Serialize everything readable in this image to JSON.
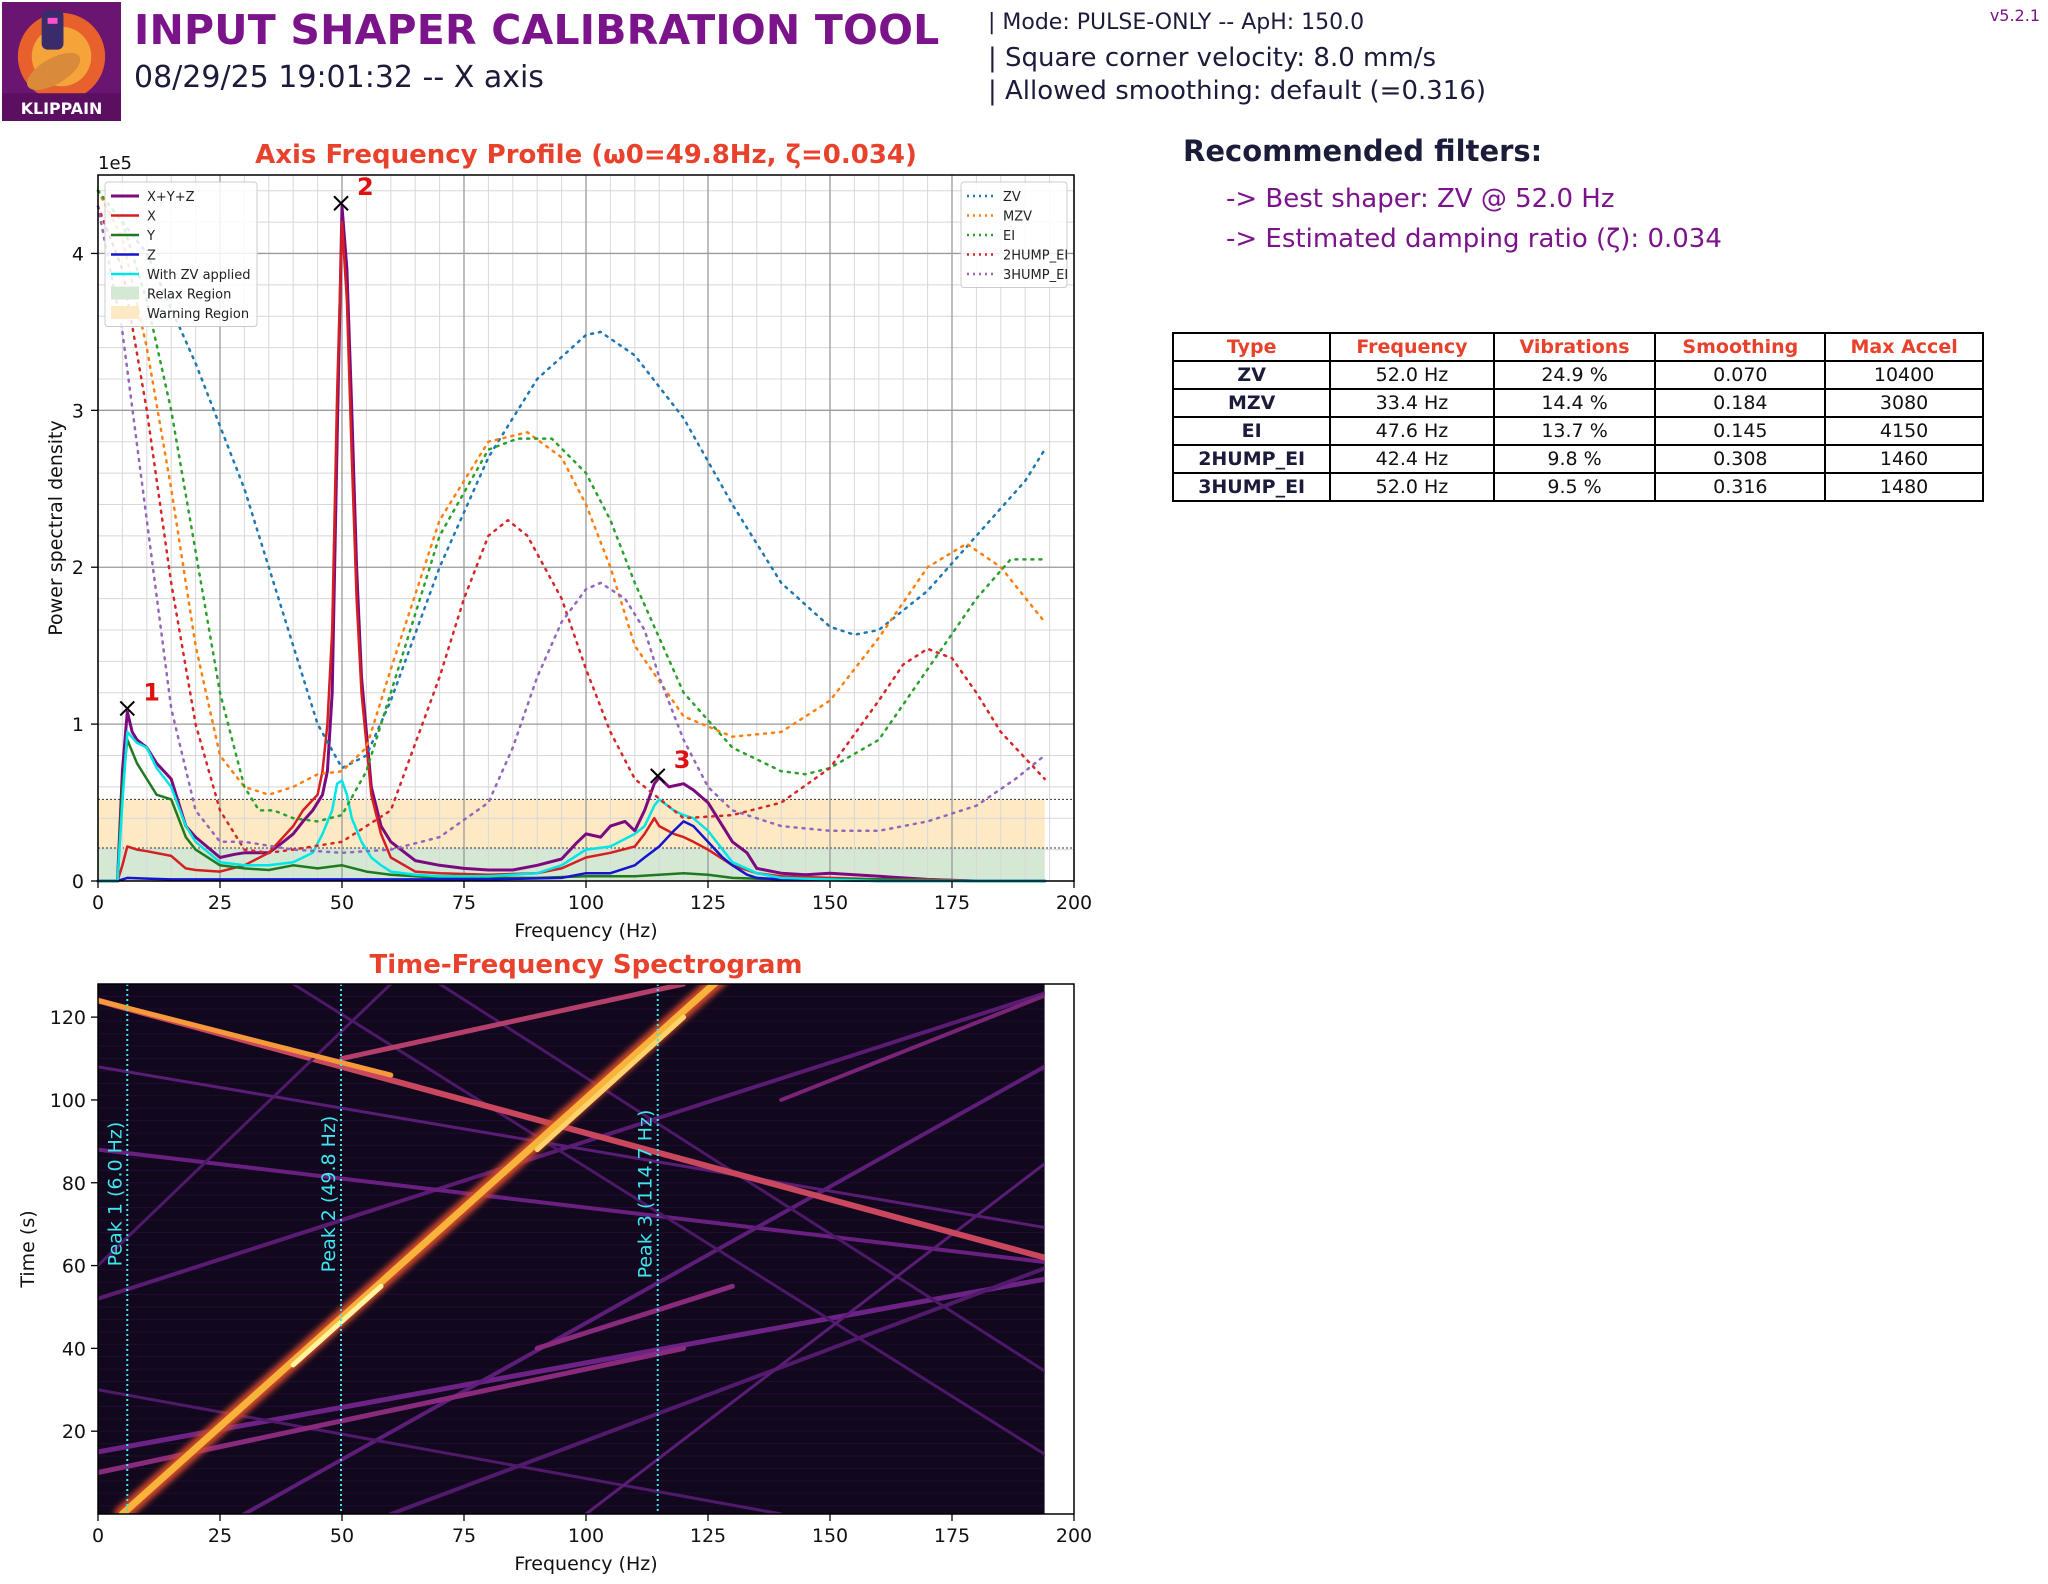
{
  "header": {
    "logo_text": "KLIPPAIN",
    "title": "INPUT SHAPER CALIBRATION TOOL",
    "subtitle": "08/29/25 19:01:32 -- X axis",
    "mode_line": "| Mode: PULSE-ONLY -- ApH: 150.0",
    "scv_line": "| Square corner velocity: 8.0 mm/s",
    "smoothing_line": "| Allowed smoothing: default (=0.316)",
    "version": "v5.2.1"
  },
  "recommendations": {
    "title": "Recommended filters:",
    "best_shaper": "-> Best shaper: ZV @ 52.0 Hz",
    "damping": "-> Estimated damping ratio (ζ): 0.034"
  },
  "filter_table": {
    "headers": [
      "Type",
      "Frequency",
      "Vibrations",
      "Smoothing",
      "Max Accel"
    ],
    "rows": [
      [
        "ZV",
        "52.0 Hz",
        "24.9 %",
        "0.070",
        "10400"
      ],
      [
        "MZV",
        "33.4 Hz",
        "14.4 %",
        "0.184",
        "3080"
      ],
      [
        "EI",
        "47.6 Hz",
        "13.7 %",
        "0.145",
        "4150"
      ],
      [
        "2HUMP_EI",
        "42.4 Hz",
        "9.8 %",
        "0.308",
        "1460"
      ],
      [
        "3HUMP_EI",
        "52.0 Hz",
        "9.5 %",
        "0.316",
        "1480"
      ]
    ]
  },
  "chart_data": [
    {
      "type": "line",
      "title": "Axis Frequency Profile (ω0=49.8Hz, ζ=0.034)",
      "xlabel": "Frequency (Hz)",
      "ylabel": "Power spectral density",
      "y_multiplier_label": "1e5",
      "xlim": [
        0,
        200
      ],
      "ylim": [
        0,
        4.5
      ],
      "x_ticks": [
        0,
        25,
        50,
        75,
        100,
        125,
        150,
        175,
        200
      ],
      "y_ticks": [
        0,
        1,
        2,
        3,
        4
      ],
      "grid": true,
      "legend_left": "top-left",
      "legend_right": "top-right",
      "regions": [
        {
          "name": "Relax Region",
          "y0": 0,
          "y1": 0.21,
          "color": "#d5e8d4"
        },
        {
          "name": "Warning Region",
          "y0": 0.21,
          "y1": 0.52,
          "color": "#fde9c4"
        }
      ],
      "series": [
        {
          "name": "X+Y+Z",
          "color": "#7b0a80",
          "width": 3,
          "dash": "",
          "x": [
            0,
            4,
            5,
            6,
            7,
            8,
            10,
            12,
            15,
            18,
            20,
            25,
            28,
            30,
            35,
            38,
            40,
            42,
            44,
            46,
            47,
            48,
            49,
            50,
            51,
            52,
            53,
            54,
            56,
            58,
            60,
            65,
            70,
            75,
            80,
            85,
            90,
            95,
            98,
            100,
            103,
            105,
            108,
            110,
            112,
            114,
            115,
            117,
            120,
            122,
            125,
            128,
            130,
            133,
            135,
            140,
            145,
            150,
            155,
            160,
            165,
            170,
            175,
            180,
            185,
            190,
            194
          ],
          "y": [
            0,
            0,
            0.7,
            1.08,
            0.95,
            0.9,
            0.85,
            0.75,
            0.65,
            0.35,
            0.28,
            0.15,
            0.17,
            0.18,
            0.18,
            0.25,
            0.3,
            0.38,
            0.45,
            0.55,
            0.7,
            1.2,
            2.8,
            4.3,
            3.9,
            3.0,
            2.0,
            1.3,
            0.6,
            0.35,
            0.25,
            0.13,
            0.1,
            0.08,
            0.07,
            0.07,
            0.1,
            0.14,
            0.24,
            0.3,
            0.28,
            0.35,
            0.38,
            0.32,
            0.45,
            0.62,
            0.66,
            0.6,
            0.62,
            0.58,
            0.5,
            0.35,
            0.25,
            0.18,
            0.08,
            0.05,
            0.04,
            0.05,
            0.04,
            0.03,
            0.02,
            0.01,
            0.005,
            0,
            0,
            0,
            0
          ]
        },
        {
          "name": "X",
          "color": "#d42020",
          "width": 2.5,
          "dash": "",
          "x": [
            0,
            4,
            5,
            6,
            8,
            10,
            15,
            18,
            20,
            25,
            30,
            35,
            40,
            42,
            45,
            46,
            47,
            48,
            49,
            50,
            51,
            52,
            53,
            54,
            56,
            58,
            60,
            65,
            70,
            80,
            90,
            95,
            100,
            105,
            110,
            112,
            114,
            115,
            118,
            120,
            122,
            125,
            130,
            135,
            140,
            150,
            160,
            170,
            180,
            190,
            194
          ],
          "y": [
            0,
            0,
            0.1,
            0.22,
            0.2,
            0.19,
            0.16,
            0.08,
            0.07,
            0.06,
            0.1,
            0.18,
            0.35,
            0.45,
            0.55,
            0.7,
            1.0,
            1.6,
            3.1,
            4.2,
            3.7,
            2.7,
            1.8,
            1.2,
            0.55,
            0.3,
            0.15,
            0.06,
            0.05,
            0.04,
            0.05,
            0.08,
            0.15,
            0.18,
            0.22,
            0.3,
            0.4,
            0.35,
            0.3,
            0.28,
            0.25,
            0.2,
            0.1,
            0.05,
            0.03,
            0.02,
            0.01,
            0.01,
            0.0,
            0.0,
            0.0
          ]
        },
        {
          "name": "Y",
          "color": "#1f7a1f",
          "width": 2.5,
          "dash": "",
          "x": [
            0,
            4,
            5,
            6,
            8,
            10,
            12,
            15,
            18,
            20,
            25,
            30,
            35,
            40,
            45,
            50,
            55,
            60,
            65,
            70,
            80,
            90,
            100,
            110,
            115,
            120,
            125,
            130,
            140,
            150,
            160,
            180,
            194
          ],
          "y": [
            0,
            0,
            0.6,
            0.9,
            0.75,
            0.65,
            0.55,
            0.52,
            0.28,
            0.2,
            0.1,
            0.08,
            0.07,
            0.1,
            0.08,
            0.1,
            0.06,
            0.04,
            0.03,
            0.02,
            0.02,
            0.02,
            0.03,
            0.03,
            0.04,
            0.05,
            0.04,
            0.02,
            0.01,
            0.01,
            0.01,
            0.0,
            0.0
          ]
        },
        {
          "name": "Z",
          "color": "#1515d0",
          "width": 2.5,
          "dash": "",
          "x": [
            0,
            4,
            6,
            10,
            15,
            20,
            40,
            60,
            80,
            95,
            100,
            105,
            110,
            112,
            115,
            118,
            120,
            122,
            125,
            128,
            130,
            133,
            135,
            140,
            160,
            194
          ],
          "y": [
            0,
            0,
            0.02,
            0.015,
            0.01,
            0.01,
            0.01,
            0.01,
            0.01,
            0.02,
            0.05,
            0.05,
            0.1,
            0.15,
            0.22,
            0.32,
            0.38,
            0.35,
            0.25,
            0.15,
            0.1,
            0.04,
            0.02,
            0.01,
            0.0,
            0.0
          ]
        },
        {
          "name": "With ZV applied",
          "color": "#00e5e5",
          "width": 2.5,
          "dash": "",
          "x": [
            0,
            4,
            5,
            6,
            8,
            10,
            12,
            15,
            18,
            20,
            25,
            30,
            35,
            40,
            44,
            46,
            48,
            49,
            50,
            51,
            52,
            54,
            56,
            58,
            60,
            65,
            70,
            80,
            90,
            95,
            100,
            105,
            110,
            112,
            114,
            115,
            118,
            120,
            122,
            125,
            128,
            130,
            135,
            140,
            160,
            194
          ],
          "y": [
            0,
            0,
            0.5,
            0.95,
            0.88,
            0.85,
            0.72,
            0.6,
            0.35,
            0.25,
            0.12,
            0.1,
            0.1,
            0.12,
            0.18,
            0.3,
            0.45,
            0.62,
            0.64,
            0.55,
            0.4,
            0.25,
            0.15,
            0.1,
            0.06,
            0.04,
            0.03,
            0.03,
            0.05,
            0.1,
            0.2,
            0.22,
            0.3,
            0.35,
            0.48,
            0.52,
            0.45,
            0.42,
            0.4,
            0.32,
            0.2,
            0.12,
            0.05,
            0.02,
            0.0,
            0.0
          ]
        },
        {
          "name": "ZV",
          "color": "#1f77b4",
          "width": 2.5,
          "dash": "2 6",
          "x": [
            0,
            10,
            20,
            30,
            40,
            45,
            50,
            55,
            60,
            70,
            80,
            90,
            100,
            103,
            110,
            120,
            130,
            140,
            150,
            155,
            160,
            170,
            180,
            190,
            194
          ],
          "y": [
            4.4,
            4.0,
            3.3,
            2.5,
            1.5,
            1.0,
            0.72,
            0.8,
            1.15,
            2.0,
            2.7,
            3.2,
            3.48,
            3.5,
            3.35,
            2.95,
            2.4,
            1.9,
            1.62,
            1.57,
            1.6,
            1.85,
            2.2,
            2.55,
            2.75
          ]
        },
        {
          "name": "MZV",
          "color": "#ff7f0e",
          "width": 2.5,
          "dash": "2 6",
          "x": [
            0,
            5,
            10,
            15,
            20,
            25,
            30,
            35,
            40,
            45,
            50,
            55,
            60,
            70,
            80,
            88,
            95,
            100,
            105,
            110,
            120,
            130,
            140,
            150,
            160,
            170,
            178,
            185,
            194
          ],
          "y": [
            4.4,
            4.1,
            3.4,
            2.5,
            1.5,
            0.8,
            0.6,
            0.55,
            0.6,
            0.68,
            0.7,
            0.85,
            1.35,
            2.3,
            2.8,
            2.86,
            2.7,
            2.4,
            2.0,
            1.5,
            1.05,
            0.92,
            0.95,
            1.15,
            1.55,
            2.0,
            2.15,
            2.0,
            1.65
          ]
        },
        {
          "name": "EI",
          "color": "#2ca02c",
          "width": 2.5,
          "dash": "2 6",
          "x": [
            0,
            5,
            10,
            15,
            20,
            25,
            30,
            33,
            36,
            40,
            45,
            50,
            55,
            60,
            70,
            80,
            86,
            93,
            100,
            105,
            110,
            120,
            130,
            140,
            145,
            150,
            160,
            170,
            180,
            187,
            194
          ],
          "y": [
            4.4,
            4.2,
            3.7,
            3.0,
            2.1,
            1.2,
            0.6,
            0.45,
            0.45,
            0.4,
            0.38,
            0.42,
            0.7,
            1.2,
            2.2,
            2.75,
            2.82,
            2.82,
            2.6,
            2.3,
            1.9,
            1.2,
            0.85,
            0.7,
            0.68,
            0.72,
            0.9,
            1.35,
            1.8,
            2.05,
            2.05
          ]
        },
        {
          "name": "2HUMP_EI",
          "color": "#d62728",
          "width": 2.5,
          "dash": "2 6",
          "x": [
            0,
            5,
            10,
            15,
            20,
            25,
            30,
            35,
            40,
            50,
            60,
            70,
            75,
            80,
            84,
            88,
            95,
            100,
            105,
            110,
            120,
            130,
            140,
            150,
            160,
            165,
            170,
            175,
            180,
            185,
            194
          ],
          "y": [
            4.3,
            3.9,
            3.0,
            1.9,
            1.0,
            0.45,
            0.2,
            0.18,
            0.2,
            0.25,
            0.45,
            1.3,
            1.8,
            2.2,
            2.3,
            2.2,
            1.8,
            1.35,
            0.95,
            0.65,
            0.4,
            0.42,
            0.5,
            0.72,
            1.15,
            1.38,
            1.48,
            1.42,
            1.2,
            0.95,
            0.65
          ]
        },
        {
          "name": "3HUMP_EI",
          "color": "#9467bd",
          "width": 2.5,
          "dash": "2 6",
          "x": [
            0,
            5,
            10,
            15,
            20,
            25,
            30,
            40,
            50,
            60,
            70,
            80,
            85,
            90,
            95,
            100,
            103,
            108,
            112,
            115,
            120,
            125,
            130,
            140,
            150,
            160,
            170,
            180,
            188,
            194
          ],
          "y": [
            4.3,
            3.5,
            2.3,
            1.1,
            0.45,
            0.25,
            0.25,
            0.2,
            0.18,
            0.2,
            0.28,
            0.5,
            0.85,
            1.3,
            1.65,
            1.86,
            1.9,
            1.8,
            1.6,
            1.3,
            0.9,
            0.6,
            0.45,
            0.35,
            0.32,
            0.32,
            0.38,
            0.48,
            0.65,
            0.8
          ]
        }
      ],
      "peaks": [
        {
          "label": "1",
          "x": 6.0,
          "y": 1.1
        },
        {
          "label": "2",
          "x": 49.8,
          "y": 4.32
        },
        {
          "label": "3",
          "x": 114.7,
          "y": 0.67
        }
      ]
    },
    {
      "type": "heatmap",
      "title": "Time-Frequency Spectrogram",
      "xlabel": "Frequency (Hz)",
      "ylabel": "Time (s)",
      "xlim": [
        0,
        200
      ],
      "ylim": [
        0,
        128
      ],
      "x_ticks": [
        0,
        25,
        50,
        75,
        100,
        125,
        150,
        175,
        200
      ],
      "y_ticks": [
        20,
        40,
        60,
        80,
        100,
        120
      ],
      "colormap": "inferno",
      "peak_lines": [
        {
          "label": "Peak 1 (6.0 Hz)",
          "x": 6.0
        },
        {
          "label": "Peak 2 (49.8 Hz)",
          "x": 49.8
        },
        {
          "label": "Peak 3 (114.7 Hz)",
          "x": 114.7
        }
      ]
    }
  ]
}
